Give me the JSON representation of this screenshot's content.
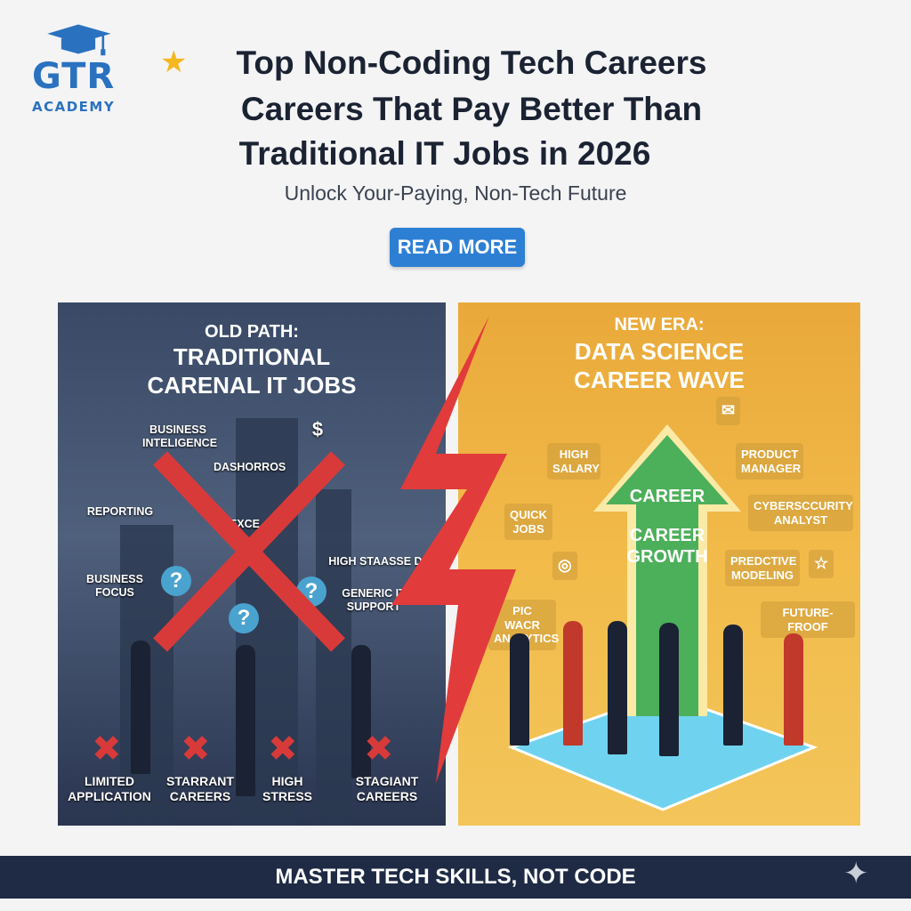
{
  "logo": {
    "name": "GTR",
    "subtitle": "ACADEMY"
  },
  "header": {
    "star_icon": "star-icon",
    "title_lines": [
      "Top Non-Coding Tech Careers",
      "Careers That Pay Better Than",
      "Traditional IT Jobs in 2026"
    ],
    "subtitle": "Unlock Your-Paying, Non-Tech Future",
    "read_more": "READ MORE"
  },
  "left_panel": {
    "heading_small": "OLD PATH:",
    "heading_lines": [
      "TRADITIONAL",
      "CARENAL IT JOBS"
    ],
    "labels": [
      "BUSINESS INTELIGENCE",
      "DASHORROS",
      "$",
      "REPORTING",
      "EXCE",
      "HIGH STAASSE DUIL",
      "BUSINESS FOCUS",
      "GENERIC IT SUPPORT"
    ],
    "bottom_items": [
      "LIMITED APPLICATION",
      "STARRANT CAREERS",
      "HIGH STRESS",
      "STAGIANT CAREERS"
    ]
  },
  "right_panel": {
    "heading_small": "NEW ERA:",
    "heading_lines": [
      "DATA SCIENCE",
      "CAREER WAVE"
    ],
    "arrow_text": [
      "CAREER",
      "CAREER GROWTH"
    ],
    "bubbles": [
      "HIGH SALARY",
      "PRODUCT MANAGER",
      "QUICK JOBS",
      "CYBERSCCURITY ANALYST",
      "PREDCTIVE MODELING",
      "PIC WACR ANALYTICS",
      "FUTURE-FROOF"
    ]
  },
  "colors": {
    "brand": "#2a72c0",
    "button": "#2d7fd3",
    "footer": "#1f2b45",
    "bolt": "#e23b3b",
    "arrow": "#4caf5a"
  },
  "footer": {
    "text": "MASTER TECH SKILLS, NOT CODE"
  }
}
